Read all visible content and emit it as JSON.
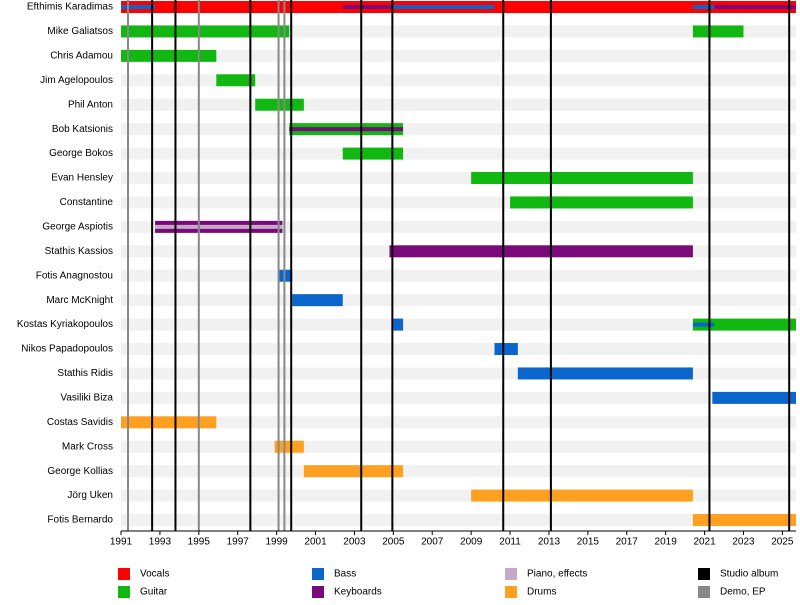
{
  "chart_data": {
    "type": "timeline",
    "xlim": [
      1991,
      2025.7
    ],
    "xticks": [
      1991,
      1993,
      1995,
      1997,
      1999,
      2001,
      2003,
      2005,
      2007,
      2009,
      2011,
      2013,
      2015,
      2017,
      2019,
      2021,
      2023,
      2025
    ],
    "legend": [
      {
        "name": "Vocals",
        "color": "#ff0000"
      },
      {
        "name": "Guitar",
        "color": "#11b811"
      },
      {
        "name": "Bass",
        "color": "#0a66cc"
      },
      {
        "name": "Keyboards",
        "color": "#7a0a7a"
      },
      {
        "name": "Piano, effects",
        "color": "#c8a8c8"
      },
      {
        "name": "Drums",
        "color": "#ffa020"
      },
      {
        "name": "Studio album",
        "color": "#000000"
      },
      {
        "name": "Demo, EP",
        "color": "#888888"
      }
    ],
    "members": [
      {
        "name": "Efthimis Karadimas",
        "periods": [
          {
            "role": "Vocals",
            "start": 1991,
            "end": 2025.7
          }
        ],
        "secondary": [
          {
            "role": "Bass",
            "start": 1991,
            "end": 1992.75
          },
          {
            "role": "Keyboards",
            "start": 2002.4,
            "end": 2005
          },
          {
            "role": "Bass",
            "start": 2005,
            "end": 2010.2
          },
          {
            "role": "Bass",
            "start": 2020.4,
            "end": 2021.5
          },
          {
            "role": "Keyboards",
            "start": 2021.5,
            "end": 2025.7
          }
        ]
      },
      {
        "name": "Mike Galiatsos",
        "periods": [
          {
            "role": "Guitar",
            "start": 1991,
            "end": 1999.65
          },
          {
            "role": "Guitar",
            "start": 2020.4,
            "end": 2023
          }
        ]
      },
      {
        "name": "Chris Adamou",
        "periods": [
          {
            "role": "Guitar",
            "start": 1991,
            "end": 1995.9
          }
        ]
      },
      {
        "name": "Jim Agelopoulos",
        "periods": [
          {
            "role": "Guitar",
            "start": 1995.9,
            "end": 1997.9
          }
        ]
      },
      {
        "name": "Phil Anton",
        "periods": [
          {
            "role": "Guitar",
            "start": 1997.9,
            "end": 2000.4
          }
        ]
      },
      {
        "name": "Bob Katsionis",
        "periods": [
          {
            "role": "Guitar",
            "start": 1999.65,
            "end": 2005.5
          }
        ],
        "secondary": [
          {
            "role": "Keyboards",
            "start": 1999.65,
            "end": 2005.5
          }
        ]
      },
      {
        "name": "George Bokos",
        "periods": [
          {
            "role": "Guitar",
            "start": 2002.4,
            "end": 2005.5
          }
        ]
      },
      {
        "name": "Evan Hensley",
        "periods": [
          {
            "role": "Guitar",
            "start": 2009,
            "end": 2020.4
          }
        ]
      },
      {
        "name": "Constantine",
        "periods": [
          {
            "role": "Guitar",
            "start": 2011,
            "end": 2020.4
          }
        ]
      },
      {
        "name": "George Aspiotis",
        "periods": [
          {
            "role": "Keyboards",
            "start": 1992.75,
            "end": 1999.3
          }
        ],
        "secondary": [
          {
            "role": "Piano, effects",
            "start": 1992.75,
            "end": 1999.3
          }
        ]
      },
      {
        "name": "Stathis Kassios",
        "periods": [
          {
            "role": "Keyboards",
            "start": 2004.8,
            "end": 2020.4
          }
        ]
      },
      {
        "name": "Fotis Anagnostou",
        "periods": [
          {
            "role": "Bass",
            "start": 1999.1,
            "end": 1999.8
          }
        ]
      },
      {
        "name": "Marc McKnight",
        "periods": [
          {
            "role": "Bass",
            "start": 1999.8,
            "end": 2002.4
          }
        ]
      },
      {
        "name": "Kostas Kyriakopoulos",
        "periods": [
          {
            "role": "Bass",
            "start": 2005,
            "end": 2005.5
          },
          {
            "role": "Guitar",
            "start": 2020.4,
            "end": 2025.7
          }
        ],
        "secondary": [
          {
            "role": "Bass",
            "start": 2020.4,
            "end": 2021.5
          }
        ]
      },
      {
        "name": "Nikos Papadopoulos",
        "periods": [
          {
            "role": "Bass",
            "start": 2010.2,
            "end": 2011.4
          }
        ]
      },
      {
        "name": "Stathis Ridis",
        "periods": [
          {
            "role": "Bass",
            "start": 2011.4,
            "end": 2020.4
          }
        ]
      },
      {
        "name": "Vasiliki Biza",
        "periods": [
          {
            "role": "Bass",
            "start": 2021.4,
            "end": 2025.7
          }
        ]
      },
      {
        "name": "Costas Savidis",
        "periods": [
          {
            "role": "Drums",
            "start": 1991,
            "end": 1995.9
          }
        ]
      },
      {
        "name": "Mark Cross",
        "periods": [
          {
            "role": "Drums",
            "start": 1998.9,
            "end": 2000.4
          }
        ]
      },
      {
        "name": "George Kollias",
        "periods": [
          {
            "role": "Drums",
            "start": 2000.4,
            "end": 2005.5
          }
        ]
      },
      {
        "name": "Jörg Uken",
        "periods": [
          {
            "role": "Drums",
            "start": 2009,
            "end": 2020.4
          }
        ]
      },
      {
        "name": "Fotis Bernardo",
        "periods": [
          {
            "role": "Drums",
            "start": 2020.4,
            "end": 2025.7
          }
        ]
      }
    ],
    "albums": [
      1992.6,
      1993.8,
      1997.65,
      1999.75,
      2003.35,
      2004.95,
      2010.65,
      2013.1,
      2021.25,
      2025.35
    ],
    "demos": [
      1991.36,
      1995,
      1999.1,
      1999.4
    ]
  }
}
